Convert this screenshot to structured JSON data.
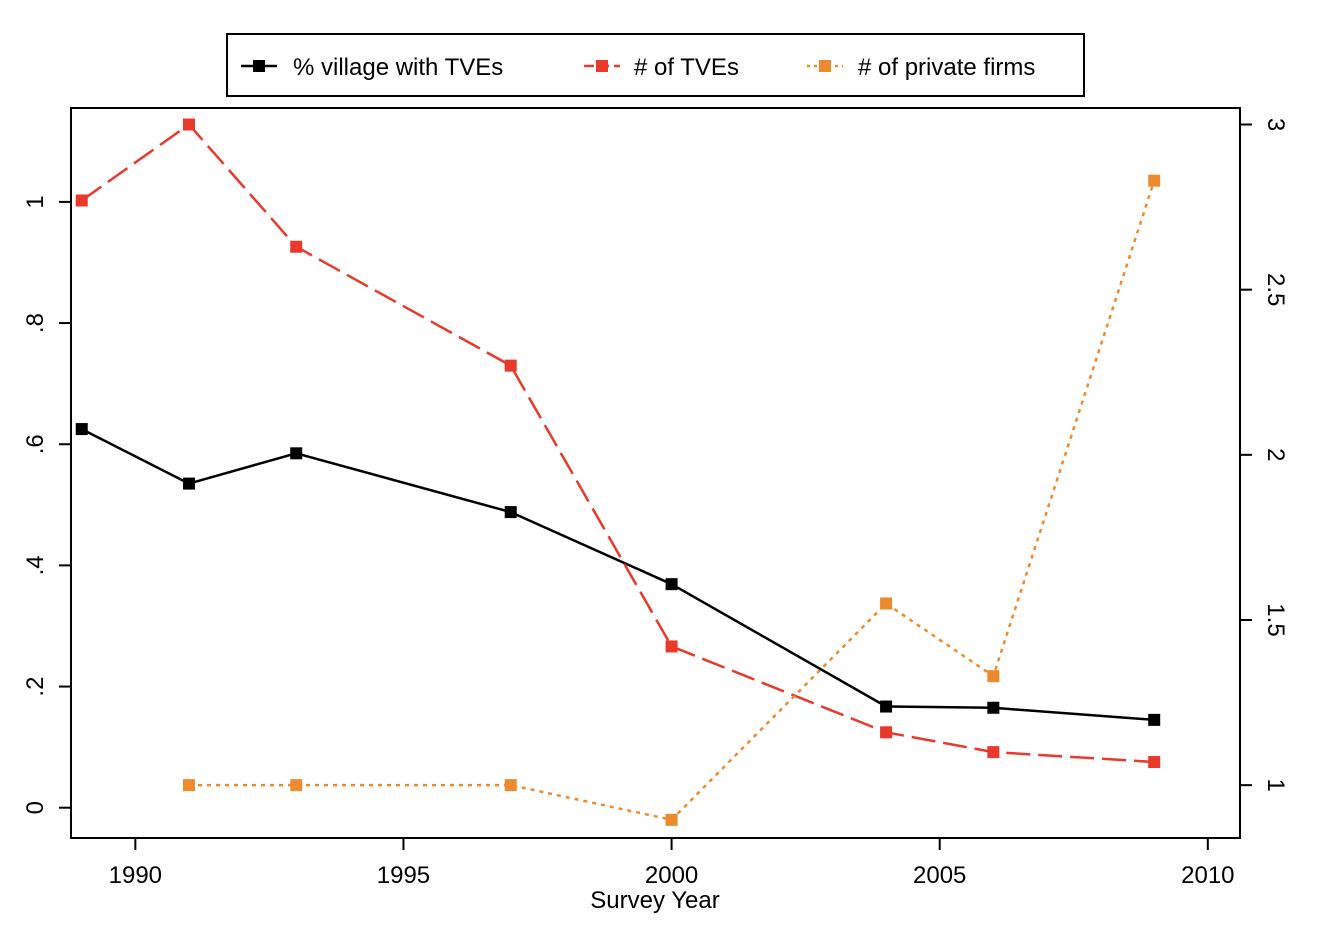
{
  "chart_data": {
    "type": "line",
    "title": "",
    "xlabel": "Survey Year",
    "xlim": [
      1988.8,
      2010.6
    ],
    "x_ticks": [
      "1990",
      "1995",
      "2000",
      "2005",
      "2010"
    ],
    "x_tick_values": [
      1990,
      1995,
      2000,
      2005,
      2010
    ],
    "y_left": {
      "ylim": [
        -0.05,
        1.155
      ],
      "ticks": [
        "0",
        ".2",
        ".4",
        ".6",
        ".8",
        "1"
      ],
      "tick_values": [
        0,
        0.2,
        0.4,
        0.6,
        0.8,
        1.0
      ]
    },
    "y_right": {
      "ylim": [
        0.84,
        3.05
      ],
      "ticks": [
        "1",
        "1.5",
        "2",
        "2.5",
        "3"
      ],
      "tick_values": [
        1,
        1.5,
        2,
        2.5,
        3
      ]
    },
    "legend": {
      "position": "top"
    },
    "series": [
      {
        "name": "% village with TVEs",
        "axis": "left",
        "color": "#000000",
        "style": "solid",
        "x": [
          1989,
          1991,
          1993,
          1997,
          2000,
          2004,
          2006,
          2009
        ],
        "y": [
          0.625,
          0.535,
          0.585,
          0.488,
          0.369,
          0.167,
          0.165,
          0.145
        ]
      },
      {
        "name": "# of TVEs",
        "axis": "right",
        "color": "#e8392b",
        "style": "dashed",
        "x": [
          1989,
          1991,
          1993,
          1997,
          2000,
          2004,
          2006,
          2009
        ],
        "y": [
          2.77,
          3.0,
          2.63,
          2.27,
          1.42,
          1.16,
          1.1,
          1.07
        ]
      },
      {
        "name": "# of private firms",
        "axis": "right",
        "color": "#ee8a2e",
        "style": "dotted",
        "x": [
          1991,
          1993,
          1997,
          2000,
          2004,
          2006,
          2009
        ],
        "y": [
          1.0,
          1.0,
          1.0,
          0.895,
          1.55,
          1.33,
          2.83
        ]
      }
    ]
  }
}
